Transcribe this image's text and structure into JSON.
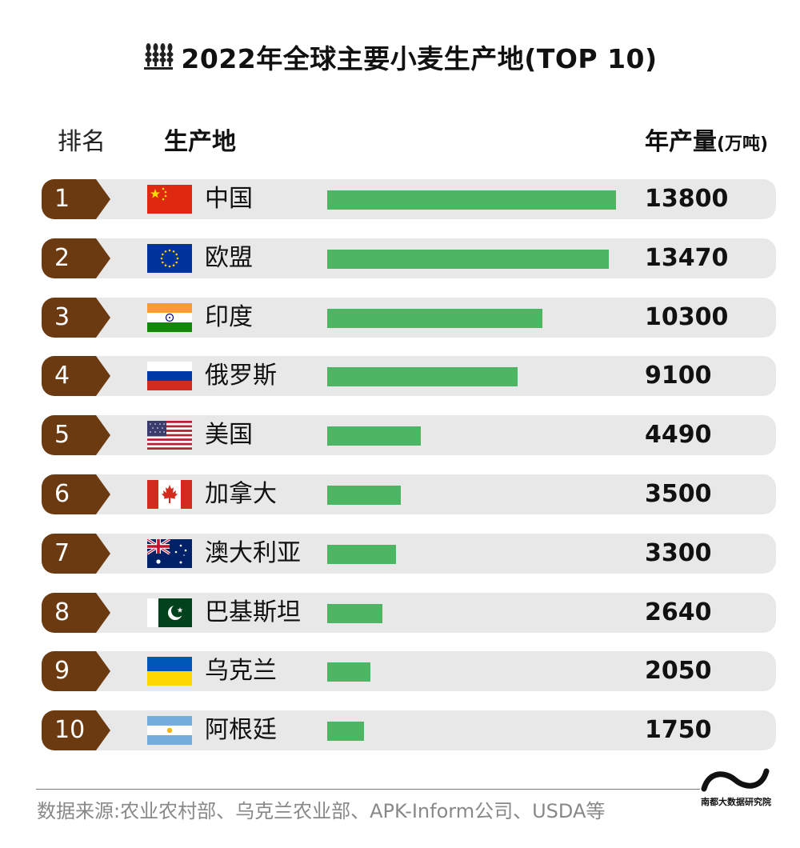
{
  "title": "2022年全球主要小麦生产地(TOP 10)",
  "title_icon": "wheat-icon",
  "header": {
    "rank": "排名",
    "place": "生产地",
    "value": "年产量",
    "unit": "(万吨)"
  },
  "colors": {
    "bar": "#4eb564",
    "rank_badge": "#6b3a11",
    "row_bg": "#e8e8e8"
  },
  "chart_data": {
    "type": "bar",
    "orientation": "horizontal",
    "title": "2022年全球主要小麦生产地(TOP 10)",
    "ylabel": "生产地",
    "xlabel": "年产量",
    "unit": "万吨",
    "xlim": [
      0,
      13800
    ],
    "categories": [
      "中国",
      "欧盟",
      "印度",
      "俄罗斯",
      "美国",
      "加拿大",
      "澳大利亚",
      "巴基斯坦",
      "乌克兰",
      "阿根廷"
    ],
    "ranks": [
      "1",
      "2",
      "3",
      "4",
      "5",
      "6",
      "7",
      "8",
      "9",
      "10"
    ],
    "flags": [
      "china-flag-icon",
      "eu-flag-icon",
      "india-flag-icon",
      "russia-flag-icon",
      "usa-flag-icon",
      "canada-flag-icon",
      "australia-flag-icon",
      "pakistan-flag-icon",
      "ukraine-flag-icon",
      "argentina-flag-icon"
    ],
    "values": [
      13800,
      13470,
      10300,
      9100,
      4490,
      3500,
      3300,
      2640,
      2050,
      1750
    ]
  },
  "footer": {
    "source": "数据来源:农业农村部、乌克兰农业部、APK-Inform公司、USDA等",
    "logo_icon": "nandu-logo-icon",
    "logo_text": "南都大数据研究院"
  }
}
